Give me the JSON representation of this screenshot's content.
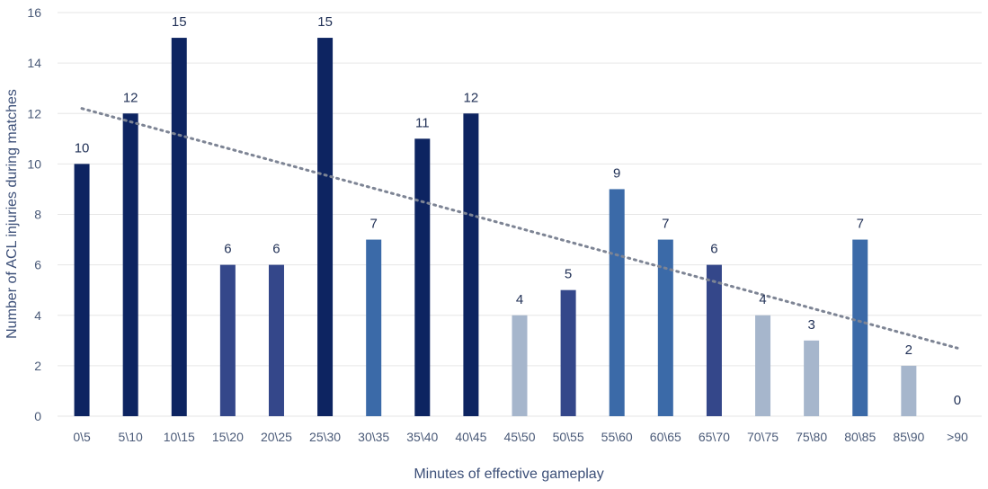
{
  "chart_data": {
    "type": "bar",
    "title": "",
    "xlabel": "Minutes of effective gameplay",
    "ylabel": "Number of ACL injuries during matches",
    "ylim": [
      0,
      16
    ],
    "yticks": [
      0,
      2,
      4,
      6,
      8,
      10,
      12,
      14,
      16
    ],
    "grid": true,
    "legend": "none",
    "categories": [
      "0\\5",
      "5\\10",
      "10\\15",
      "15\\20",
      "20\\25",
      "25\\30",
      "30\\35",
      "35\\40",
      "40\\45",
      "45\\50",
      "50\\55",
      "55\\60",
      "60\\65",
      "65\\70",
      "70\\75",
      "75\\80",
      "80\\85",
      "85\\90",
      ">90"
    ],
    "values": [
      10,
      12,
      15,
      6,
      6,
      15,
      7,
      11,
      12,
      4,
      5,
      9,
      7,
      6,
      4,
      3,
      7,
      2,
      0
    ],
    "bar_colors": [
      "#0d2461",
      "#0d2461",
      "#0d2461",
      "#34478a",
      "#34478a",
      "#0d2461",
      "#3b6aa8",
      "#0d2461",
      "#0d2461",
      "#a6b6cc",
      "#34478a",
      "#3b6aa8",
      "#3b6aa8",
      "#34478a",
      "#a6b6cc",
      "#a6b6cc",
      "#3b6aa8",
      "#a6b6cc",
      "#a6b6cc"
    ],
    "trendline": {
      "type": "linear",
      "style": "dotted",
      "color": "#7d8494",
      "start_value": 12.2,
      "end_value": 2.7
    },
    "gridline_color": "#e6e6e6"
  }
}
